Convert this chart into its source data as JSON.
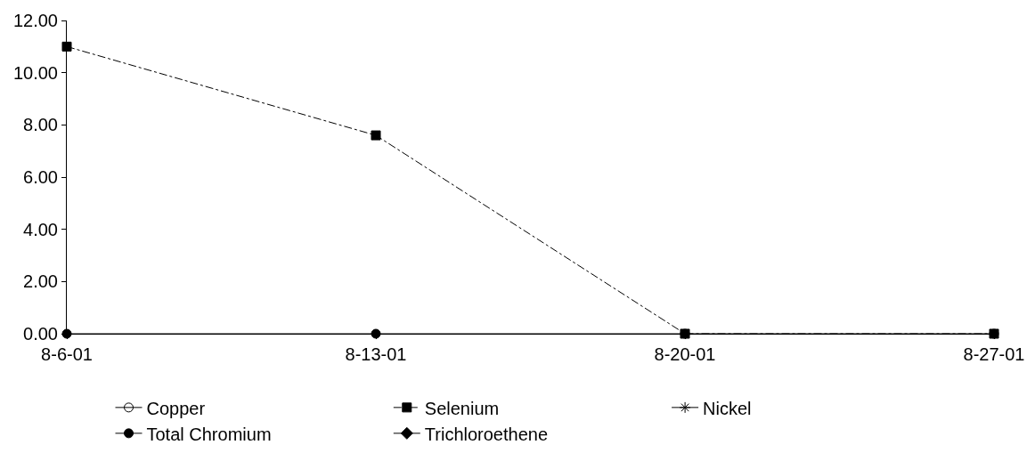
{
  "chart_data": {
    "type": "line",
    "x": [
      "--08-06",
      "--08-13",
      "--08-20",
      "--08-27"
    ],
    "xlim": [
      "--08-06",
      "--08-27"
    ],
    "xticks": [
      {
        "value": "--08-06",
        "label": "8-6-01"
      },
      {
        "value": "--08-13",
        "label": "8-13-01"
      },
      {
        "value": "--08-20",
        "label": "8-20-01"
      },
      {
        "value": "--08-27",
        "label": "8-27-01"
      }
    ],
    "ylim": [
      0,
      12
    ],
    "yticks": [
      {
        "value": 0,
        "label": "0.00"
      },
      {
        "value": 2,
        "label": "2.00"
      },
      {
        "value": 4,
        "label": "4.00"
      },
      {
        "value": 6,
        "label": "6.00"
      },
      {
        "value": 8,
        "label": "8.00"
      },
      {
        "value": 10,
        "label": "10.00"
      },
      {
        "value": 12,
        "label": "12.00"
      }
    ],
    "grid": false,
    "legend": "bottom",
    "series": [
      {
        "name": "Copper",
        "color": "#000000",
        "marker": "circle-open",
        "line_style": "solid",
        "values": [
          null,
          null,
          null,
          null
        ]
      },
      {
        "name": "Selenium",
        "color": "#000000",
        "marker": "square",
        "line_style": "dashed",
        "values": [
          11.0,
          7.6,
          0,
          0
        ]
      },
      {
        "name": "Nickel",
        "color": "#000000",
        "marker": "cross",
        "line_style": "solid",
        "values": [
          null,
          null,
          null,
          null
        ]
      },
      {
        "name": "Total Chromium",
        "color": "#000000",
        "marker": "circle",
        "line_style": "solid",
        "values": [
          0,
          0,
          0,
          0
        ]
      },
      {
        "name": "Trichloroethene",
        "color": "#000000",
        "marker": "diamond",
        "line_style": "solid",
        "values": [
          null,
          null,
          null,
          null
        ]
      }
    ]
  }
}
